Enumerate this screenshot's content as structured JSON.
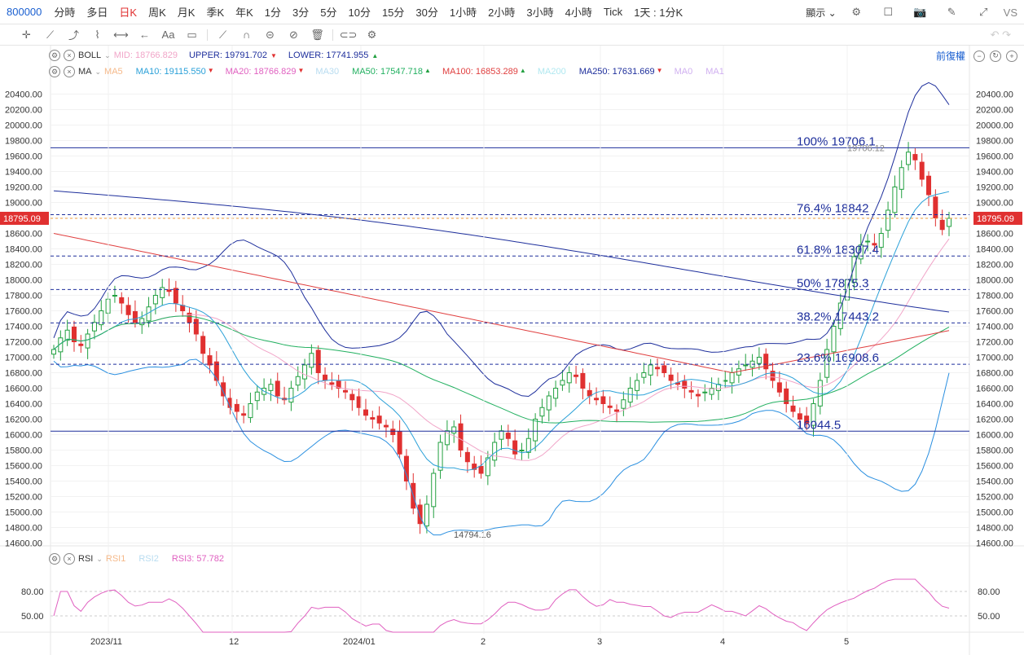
{
  "symbol": "800000",
  "timeframes": [
    "分時",
    "多日",
    "日K",
    "周K",
    "月K",
    "季K",
    "年K",
    "1分",
    "3分",
    "5分",
    "10分",
    "15分",
    "30分",
    "1小時",
    "2小時",
    "3小時",
    "4小時",
    "Tick",
    "1天 : 1分K"
  ],
  "active_timeframe_index": 2,
  "display_label": "顯示",
  "vs_label": "VS",
  "adjust_label": "前復權",
  "boll": {
    "name": "BOLL",
    "mid": "MID: 18766.829",
    "upper": "UPPER: 19791.702",
    "lower": "LOWER: 17741.955",
    "colors": {
      "mid": "#f1a5c8",
      "upper": "#1e2f9c",
      "lower": "#1e2f9c"
    }
  },
  "ma": {
    "name": "MA",
    "items": [
      {
        "text": "MA5",
        "color": "#f5b98a",
        "arrow": ""
      },
      {
        "text": "MA10: 19115.550",
        "color": "#2aa0d8",
        "arrow": "down"
      },
      {
        "text": "MA20: 18766.829",
        "color": "#e060c0",
        "arrow": "down"
      },
      {
        "text": "MA30",
        "color": "#b8dcf0",
        "arrow": ""
      },
      {
        "text": "MA50: 17547.718",
        "color": "#22b060",
        "arrow": "up"
      },
      {
        "text": "MA100: 16853.289",
        "color": "#e04040",
        "arrow": "up"
      },
      {
        "text": "MA200",
        "color": "#b0e8f0",
        "arrow": ""
      },
      {
        "text": "MA250: 17631.669",
        "color": "#1e2f9c",
        "arrow": "down"
      },
      {
        "text": "MA0",
        "color": "#d0b0f0",
        "arrow": ""
      },
      {
        "text": "MA1",
        "color": "#d0b0f0",
        "arrow": ""
      }
    ]
  },
  "rsi": {
    "name": "RSI",
    "items": [
      {
        "text": "RSI1",
        "color": "#f5b98a"
      },
      {
        "text": "RSI2",
        "color": "#b8dcf0"
      },
      {
        "text": "RSI3: 57.782",
        "color": "#e060c0"
      }
    ],
    "levels": [
      80,
      50
    ],
    "level_labels": [
      "80.00",
      "50.00"
    ]
  },
  "y_axis": [
    "20400.00",
    "20200.00",
    "20000.00",
    "19800.00",
    "19600.00",
    "19400.00",
    "19200.00",
    "19000.00",
    "18800.00",
    "18600.00",
    "18400.00",
    "18200.00",
    "18000.00",
    "17800.00",
    "17600.00",
    "17400.00",
    "17200.00",
    "17000.00",
    "16800.00",
    "16600.00",
    "16400.00",
    "16200.00",
    "16000.00",
    "15800.00",
    "15600.00",
    "15400.00",
    "15200.00",
    "15000.00",
    "14800.00",
    "14600.00"
  ],
  "current_price": "18795.09",
  "x_axis": [
    "2023/11",
    "12",
    "2024/01",
    "2",
    "3",
    "4",
    "5"
  ],
  "fib_levels": [
    {
      "label": "100% 19706.1",
      "value": 19706.1
    },
    {
      "label": "76.4% 18842",
      "value": 18842
    },
    {
      "label": "61.8% 18307.4",
      "value": 18307.4
    },
    {
      "label": "50% 17875.3",
      "value": 17875.3
    },
    {
      "label": "38.2% 17443.2",
      "value": 17443.2
    },
    {
      "label": "23.6% 16908.6",
      "value": 16908.6
    },
    {
      "label": "16044.5",
      "value": 16044.5
    }
  ],
  "high_label": "19706.12",
  "low_label": "14794.16",
  "chart_data": {
    "type": "candlestick",
    "ylim": [
      14500,
      20500
    ],
    "current_price": 18795.09,
    "high": 19706.12,
    "low": 14794.16,
    "closes": [
      17100,
      17250,
      17350,
      17200,
      17150,
      17300,
      17450,
      17600,
      17750,
      17800,
      17700,
      17550,
      17450,
      17500,
      17650,
      17800,
      17900,
      17850,
      17700,
      17600,
      17450,
      17300,
      17050,
      16900,
      16700,
      16500,
      16350,
      16300,
      16250,
      16400,
      16550,
      16600,
      16650,
      16500,
      16450,
      16600,
      16750,
      16900,
      17050,
      16800,
      16700,
      16650,
      16600,
      16550,
      16450,
      16350,
      16250,
      16200,
      16150,
      16100,
      16000,
      15750,
      15400,
      15050,
      14850,
      15100,
      15500,
      15900,
      16050,
      16100,
      15800,
      15650,
      15550,
      15500,
      15700,
      15900,
      16050,
      15950,
      15750,
      15800,
      15950,
      16200,
      16350,
      16500,
      16600,
      16700,
      16800,
      16750,
      16600,
      16500,
      16450,
      16400,
      16350,
      16300,
      16450,
      16600,
      16700,
      16800,
      16900,
      16850,
      16800,
      16700,
      16650,
      16600,
      16550,
      16500,
      16550,
      16600,
      16650,
      16700,
      16800,
      16850,
      16900,
      16950,
      17000,
      16850,
      16700,
      16550,
      16400,
      16300,
      16200,
      16150,
      16400,
      16700,
      17100,
      17400,
      17700,
      18000,
      18300,
      18450,
      18500,
      18450,
      18600,
      18900,
      19200,
      19450,
      19650,
      19550,
      19300,
      19100,
      18800,
      18650,
      18795
    ]
  }
}
